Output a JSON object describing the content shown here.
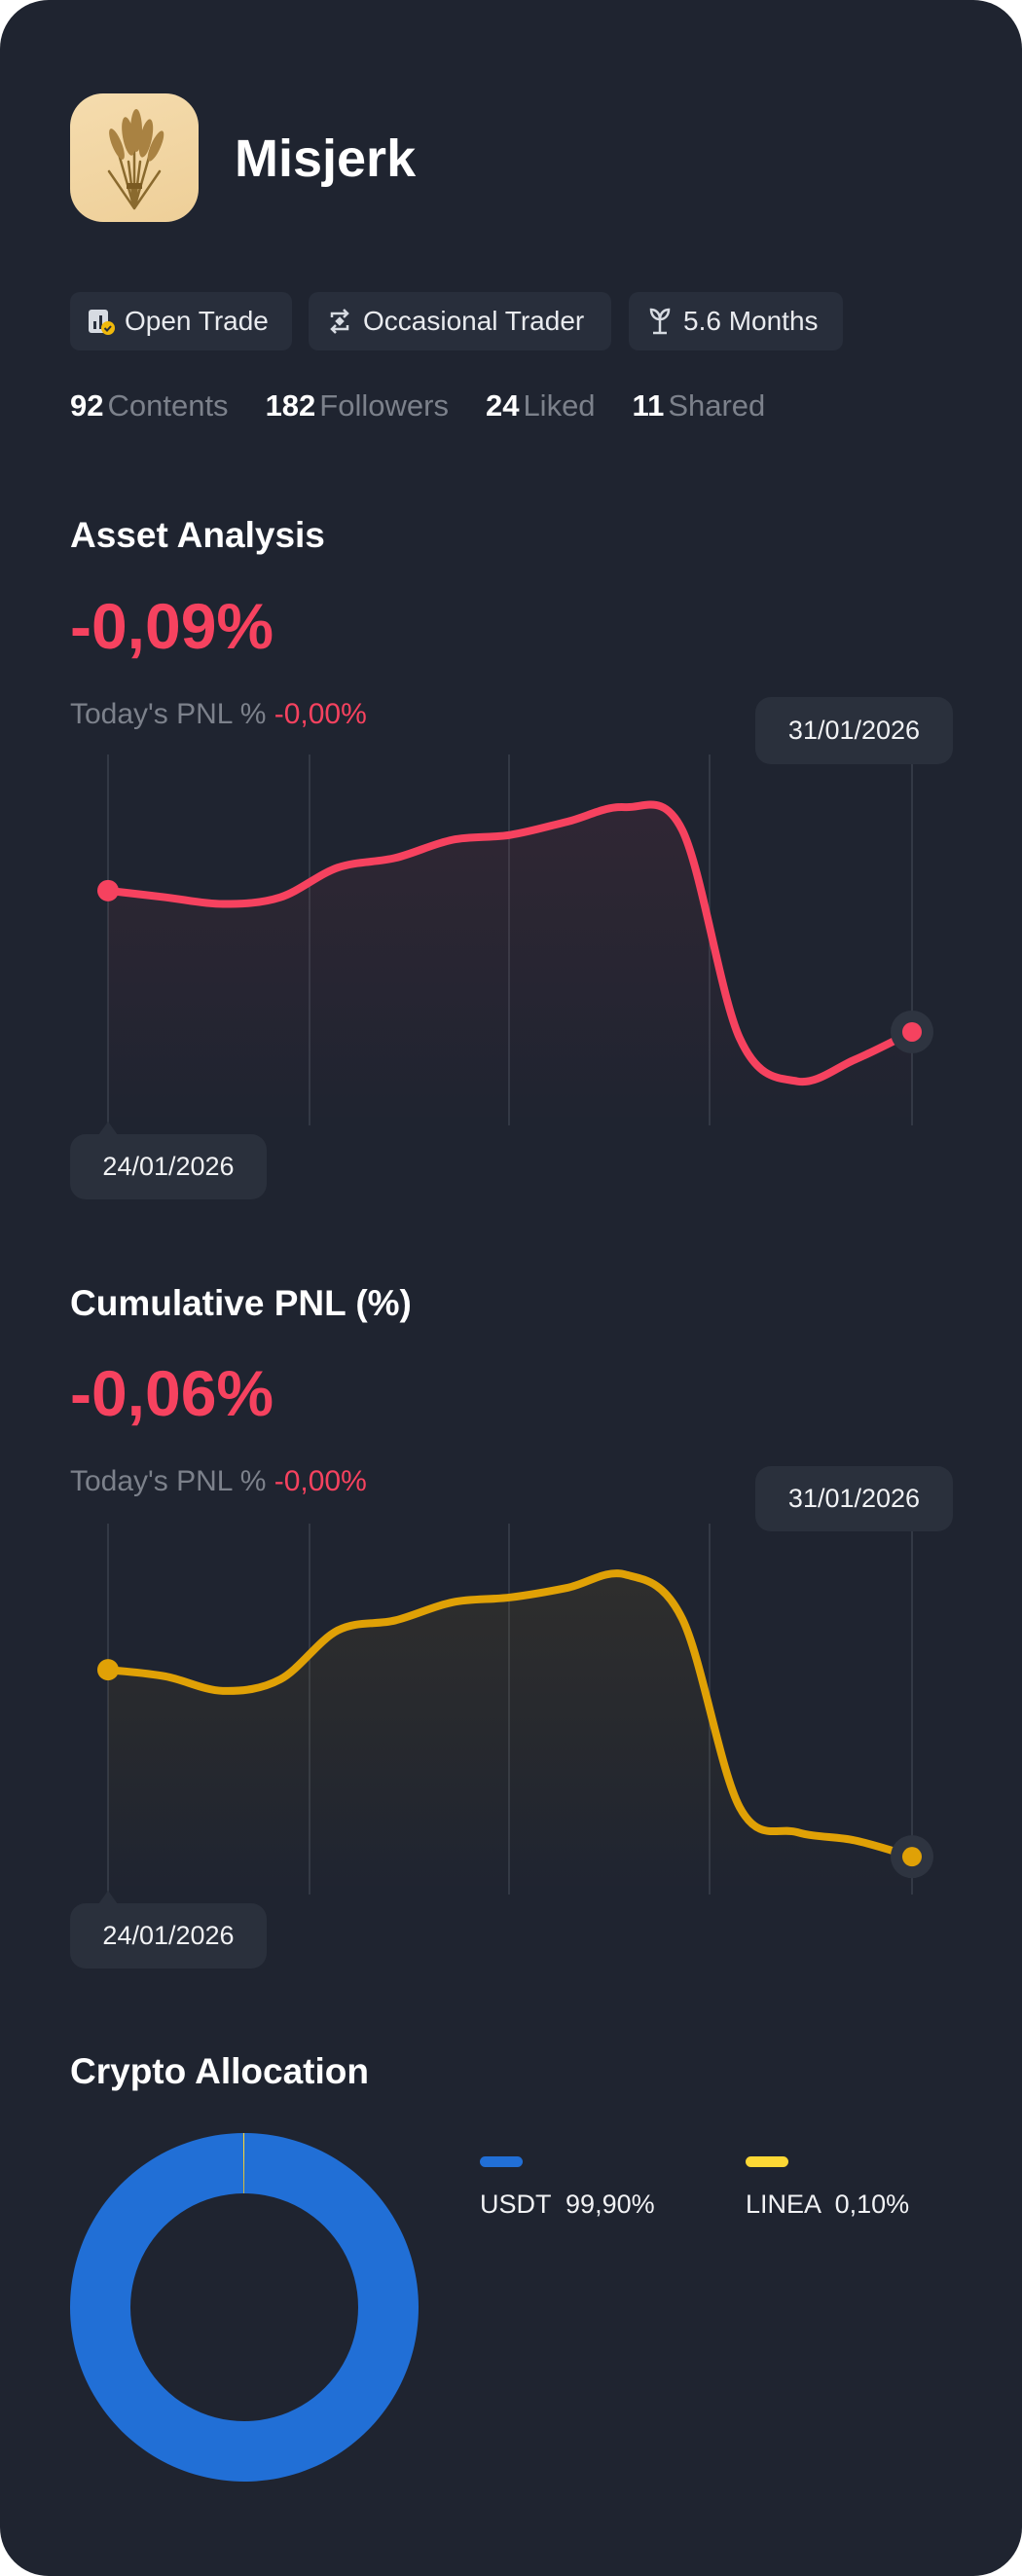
{
  "profile": {
    "name": "Misjerk",
    "avatar_icon": "wheat-sheaf-icon",
    "tags": [
      {
        "icon": "open-trade-icon",
        "label": "Open Trade"
      },
      {
        "icon": "repeat-icon",
        "label": "Occasional Trader"
      },
      {
        "icon": "sprout-icon",
        "label": "5.6 Months"
      }
    ],
    "stats": [
      {
        "value": "92",
        "label": "Contents"
      },
      {
        "value": "182",
        "label": "Followers"
      },
      {
        "value": "24",
        "label": "Liked"
      },
      {
        "value": "11",
        "label": "Shared"
      }
    ]
  },
  "asset_analysis": {
    "title": "Asset Analysis",
    "value": "-0,09%",
    "today_label": "Today's PNL %",
    "today_value": "-0,00%",
    "start_date": "24/01/2026",
    "end_date": "31/01/2026"
  },
  "cumulative_pnl": {
    "title": "Cumulative PNL (%)",
    "value": "-0,06%",
    "today_label": "Today's PNL %",
    "today_value": "-0,00%",
    "start_date": "24/01/2026",
    "end_date": "31/01/2026"
  },
  "crypto_allocation": {
    "title": "Crypto Allocation",
    "items": [
      {
        "name": "USDT",
        "percent_label": "99,90%",
        "value": 99.9,
        "color": "#216fd6"
      },
      {
        "name": "LINEA",
        "percent_label": "0,10%",
        "value": 0.1,
        "color": "#fdd835"
      }
    ]
  },
  "chart_data": [
    {
      "type": "area",
      "x_range": [
        "24/01/2026",
        "31/01/2026"
      ],
      "color": "#f6425f",
      "grid": "vertical",
      "values": [
        63.3,
        61.5,
        59.7,
        61.5,
        69.5,
        72.1,
        77.0,
        78.3,
        81.9,
        85.8,
        79.6,
        23.5,
        11.9,
        17.7,
        25.2
      ]
    },
    {
      "type": "area",
      "x_range": [
        "24/01/2026",
        "31/01/2026"
      ],
      "color": "#e0a106",
      "grid": "vertical",
      "values": [
        60.6,
        58.8,
        54.9,
        58.0,
        71.2,
        73.9,
        78.8,
        80.1,
        82.7,
        86.3,
        74.3,
        23.5,
        16.8,
        14.6,
        10.2
      ]
    },
    {
      "type": "pie",
      "categories": [
        "USDT",
        "LINEA"
      ],
      "values": [
        99.9,
        0.1
      ],
      "colors": [
        "#216fd6",
        "#fdd835"
      ],
      "legend": "right"
    }
  ]
}
